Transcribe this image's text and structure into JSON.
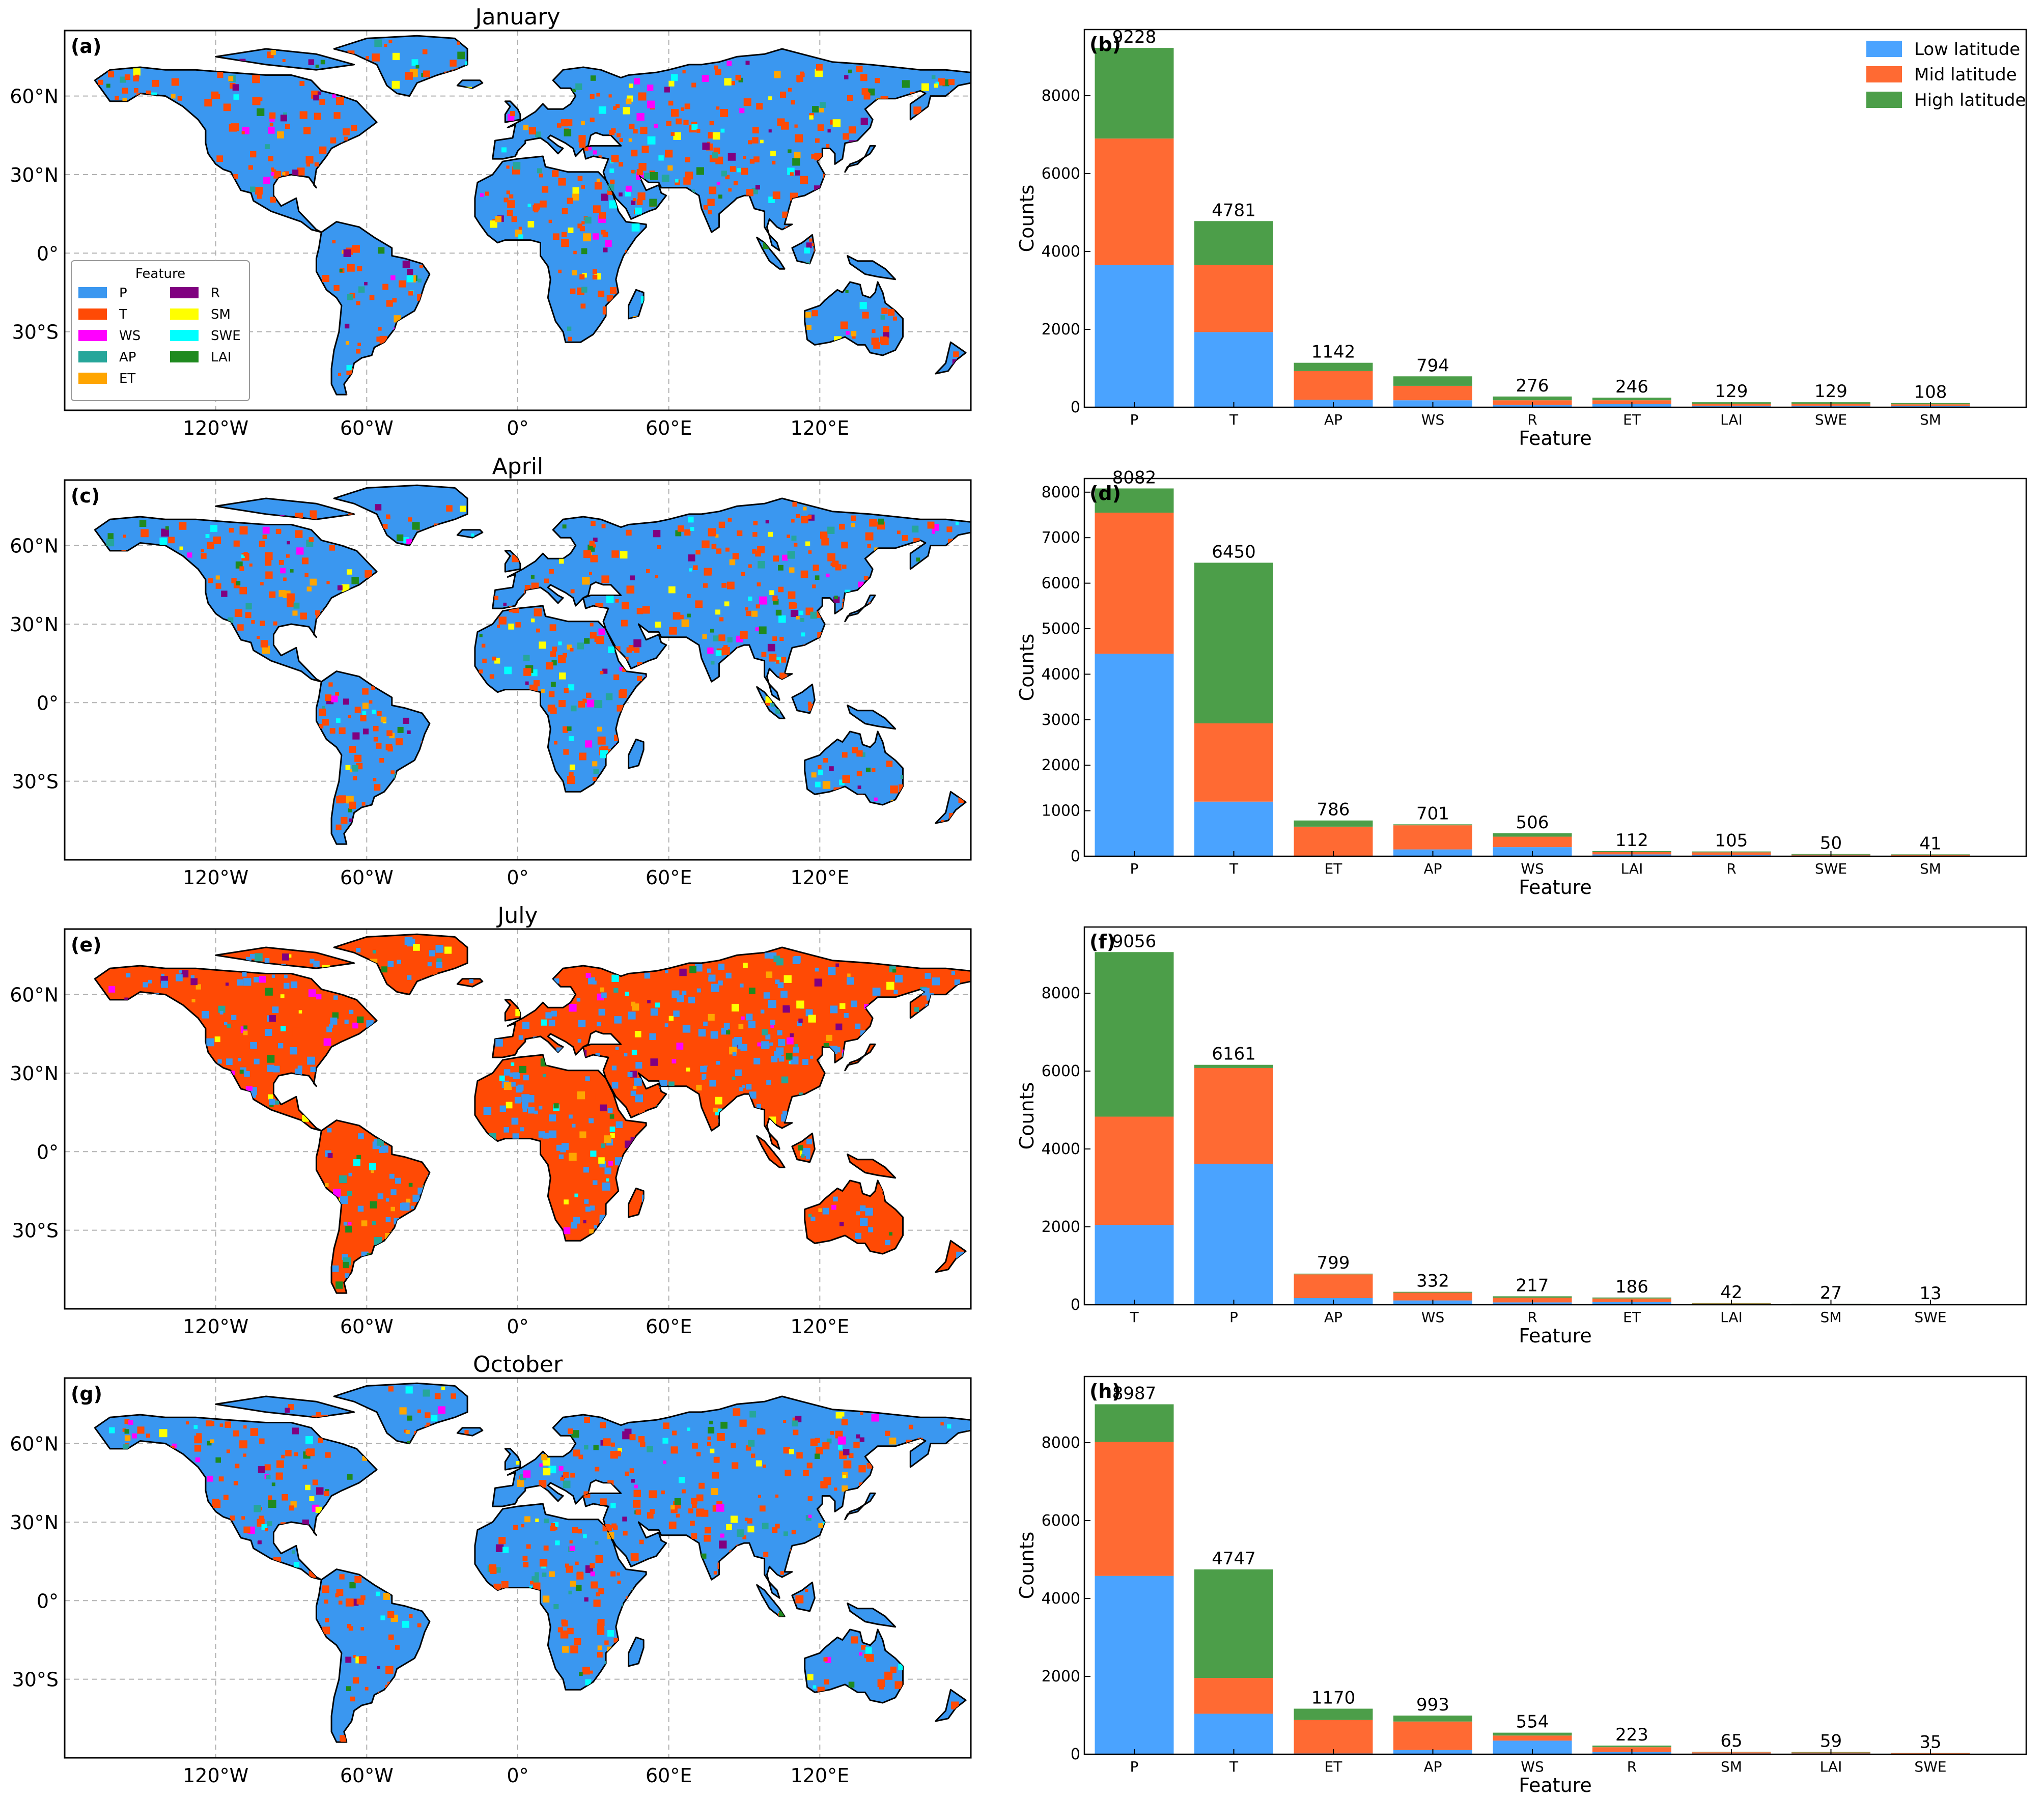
{
  "colors": {
    "P": "#3a97f0",
    "T": "#ff4a05",
    "WS": "#ff00ff",
    "AP": "#26a69a",
    "ET": "#ffa500",
    "R": "#800080",
    "SM": "#ffff00",
    "SWE": "#00ffff",
    "LAI": "#1f8a1f",
    "low": "#4aa3ff",
    "mid": "#ff6a33",
    "high": "#4c9e49"
  },
  "maps": {
    "lat_ticks": [
      "60°N",
      "30°N",
      "0°",
      "30°S"
    ],
    "lon_ticks": [
      "120°W",
      "60°W",
      "0°",
      "60°E",
      "120°E"
    ],
    "panels": [
      {
        "title": "January",
        "letter": "(a)",
        "dominant": "P"
      },
      {
        "title": "April",
        "letter": "(c)",
        "dominant": "P"
      },
      {
        "title": "July",
        "letter": "(e)",
        "dominant": "T"
      },
      {
        "title": "October",
        "letter": "(g)",
        "dominant": "P"
      }
    ],
    "legend": {
      "title": "Feature",
      "items": [
        {
          "label": "P",
          "key": "P"
        },
        {
          "label": "R",
          "key": "R"
        },
        {
          "label": "T",
          "key": "T"
        },
        {
          "label": "SM",
          "key": "SM"
        },
        {
          "label": "WS",
          "key": "WS"
        },
        {
          "label": "SWE",
          "key": "SWE"
        },
        {
          "label": "AP",
          "key": "AP"
        },
        {
          "label": "LAI",
          "key": "LAI"
        },
        {
          "label": "ET",
          "key": "ET"
        }
      ]
    }
  },
  "chart_data": [
    {
      "type": "bar",
      "letter": "(b)",
      "xlabel": "Feature",
      "ylabel": "Counts",
      "ylim": [
        0,
        9700
      ],
      "yticks": [
        0,
        2000,
        4000,
        6000,
        8000
      ],
      "categories": [
        "P",
        "T",
        "AP",
        "WS",
        "R",
        "ET",
        "LAI",
        "SWE",
        "SM"
      ],
      "totals": [
        9228,
        4781,
        1142,
        794,
        276,
        246,
        129,
        129,
        108
      ],
      "series": [
        {
          "name": "Low latitude",
          "key": "low",
          "values": [
            3650,
            1930,
            190,
            180,
            60,
            80,
            40,
            40,
            35
          ]
        },
        {
          "name": "Mid latitude",
          "key": "mid",
          "values": [
            3250,
            1720,
            740,
            370,
            120,
            100,
            50,
            50,
            40
          ]
        },
        {
          "name": "High latitude",
          "key": "high",
          "values": [
            2328,
            1131,
            212,
            244,
            96,
            66,
            39,
            39,
            33
          ]
        }
      ],
      "legend": "top-right"
    },
    {
      "type": "bar",
      "letter": "(d)",
      "xlabel": "Feature",
      "ylabel": "Counts",
      "ylim": [
        0,
        8300
      ],
      "yticks": [
        0,
        1000,
        2000,
        3000,
        4000,
        5000,
        6000,
        7000,
        8000
      ],
      "categories": [
        "P",
        "T",
        "ET",
        "AP",
        "WS",
        "LAI",
        "R",
        "SWE",
        "SM"
      ],
      "totals": [
        8082,
        6450,
        786,
        701,
        506,
        112,
        105,
        50,
        41
      ],
      "series": [
        {
          "name": "Low latitude",
          "key": "low",
          "values": [
            4450,
            1200,
            10,
            150,
            200,
            40,
            30,
            15,
            12
          ]
        },
        {
          "name": "Mid latitude",
          "key": "mid",
          "values": [
            3100,
            1720,
            640,
            530,
            230,
            50,
            55,
            20,
            17
          ]
        },
        {
          "name": "High latitude",
          "key": "high",
          "values": [
            532,
            3530,
            136,
            21,
            76,
            22,
            20,
            15,
            12
          ]
        }
      ]
    },
    {
      "type": "bar",
      "letter": "(f)",
      "xlabel": "Feature",
      "ylabel": "Counts",
      "ylim": [
        0,
        9700
      ],
      "yticks": [
        0,
        2000,
        4000,
        6000,
        8000
      ],
      "categories": [
        "T",
        "P",
        "AP",
        "WS",
        "R",
        "ET",
        "LAI",
        "SM",
        "SWE"
      ],
      "totals": [
        9056,
        6161,
        799,
        332,
        217,
        186,
        42,
        27,
        13
      ],
      "series": [
        {
          "name": "Low latitude",
          "key": "low",
          "values": [
            2050,
            3620,
            170,
            110,
            60,
            70,
            15,
            10,
            5
          ]
        },
        {
          "name": "Mid latitude",
          "key": "mid",
          "values": [
            2780,
            2460,
            610,
            200,
            120,
            90,
            17,
            11,
            5
          ]
        },
        {
          "name": "High latitude",
          "key": "high",
          "values": [
            4226,
            81,
            19,
            22,
            37,
            26,
            10,
            6,
            3
          ]
        }
      ]
    },
    {
      "type": "bar",
      "letter": "(h)",
      "xlabel": "Feature",
      "ylabel": "Counts",
      "ylim": [
        0,
        9700
      ],
      "yticks": [
        0,
        2000,
        4000,
        6000,
        8000
      ],
      "categories": [
        "P",
        "T",
        "ET",
        "AP",
        "WS",
        "R",
        "SM",
        "LAI",
        "SWE"
      ],
      "totals": [
        8987,
        4747,
        1170,
        993,
        554,
        223,
        65,
        59,
        35
      ],
      "series": [
        {
          "name": "Low latitude",
          "key": "low",
          "values": [
            4580,
            1040,
            20,
            110,
            350,
            60,
            20,
            20,
            10
          ]
        },
        {
          "name": "Mid latitude",
          "key": "mid",
          "values": [
            3440,
            920,
            860,
            730,
            130,
            120,
            30,
            25,
            15
          ]
        },
        {
          "name": "High latitude",
          "key": "high",
          "values": [
            967,
            2787,
            290,
            153,
            74,
            43,
            15,
            14,
            10
          ]
        }
      ]
    }
  ]
}
